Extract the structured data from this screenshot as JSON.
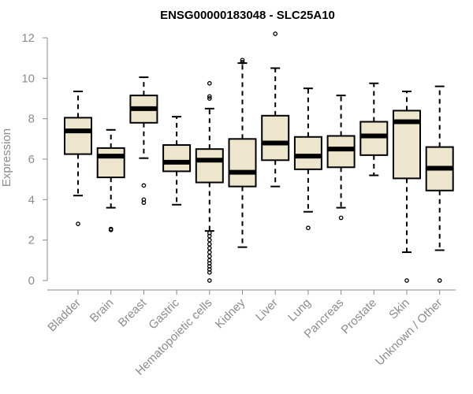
{
  "chart_data": {
    "type": "boxplot",
    "title": "ENSG00000183048 - SLC25A10",
    "xlabel": "",
    "ylabel": "Expression",
    "ylim": [
      0,
      12
    ],
    "yticks": [
      0,
      2,
      4,
      6,
      8,
      10,
      12
    ],
    "grid": false,
    "box_color": "#ede6cc",
    "axis_color": "#8c8c8c",
    "categories": [
      "Bladder",
      "Brain",
      "Breast",
      "Gastric",
      "Hematopoietic cells",
      "Kidney",
      "Liver",
      "Lung",
      "Pancreas",
      "Prostate",
      "Skin",
      "Unknown / Other"
    ],
    "boxes": [
      {
        "whisker_low": 4.2,
        "q1": 6.25,
        "median": 7.4,
        "q3": 8.05,
        "whisker_high": 9.35,
        "outliers": [
          2.8
        ]
      },
      {
        "whisker_low": 3.6,
        "q1": 5.1,
        "median": 6.15,
        "q3": 6.55,
        "whisker_high": 7.45,
        "outliers": [
          2.5,
          2.55
        ]
      },
      {
        "whisker_low": 6.05,
        "q1": 7.8,
        "median": 8.5,
        "q3": 9.15,
        "whisker_high": 10.05,
        "outliers": [
          4.7,
          4.0,
          3.85
        ]
      },
      {
        "whisker_low": 3.75,
        "q1": 5.4,
        "median": 5.85,
        "q3": 6.7,
        "whisker_high": 8.1,
        "outliers": []
      },
      {
        "whisker_low": 2.45,
        "q1": 4.85,
        "median": 5.95,
        "q3": 6.5,
        "whisker_high": 8.5,
        "outliers": [
          9.75,
          9.1,
          9.0,
          2.35,
          2.2,
          2.0,
          1.8,
          1.6,
          1.4,
          1.2,
          1.0,
          0.85,
          0.7,
          0.55,
          0.4,
          0.0
        ]
      },
      {
        "whisker_low": 1.65,
        "q1": 4.65,
        "median": 5.35,
        "q3": 7.0,
        "whisker_high": 10.75,
        "outliers": [
          10.9,
          10.8
        ]
      },
      {
        "whisker_low": 4.65,
        "q1": 5.95,
        "median": 6.8,
        "q3": 8.15,
        "whisker_high": 10.5,
        "outliers": [
          12.2
        ]
      },
      {
        "whisker_low": 3.4,
        "q1": 5.5,
        "median": 6.15,
        "q3": 7.1,
        "whisker_high": 9.5,
        "outliers": [
          2.6
        ]
      },
      {
        "whisker_low": 3.6,
        "q1": 5.6,
        "median": 6.5,
        "q3": 7.15,
        "whisker_high": 9.15,
        "outliers": [
          3.1
        ]
      },
      {
        "whisker_low": 5.2,
        "q1": 6.2,
        "median": 7.15,
        "q3": 7.85,
        "whisker_high": 9.75,
        "outliers": []
      },
      {
        "whisker_low": 1.4,
        "q1": 5.05,
        "median": 7.85,
        "q3": 8.4,
        "whisker_high": 9.35,
        "outliers": [
          0.0
        ]
      },
      {
        "whisker_low": 1.5,
        "q1": 4.45,
        "median": 5.55,
        "q3": 6.6,
        "whisker_high": 9.6,
        "outliers": [
          0.0
        ]
      }
    ]
  }
}
